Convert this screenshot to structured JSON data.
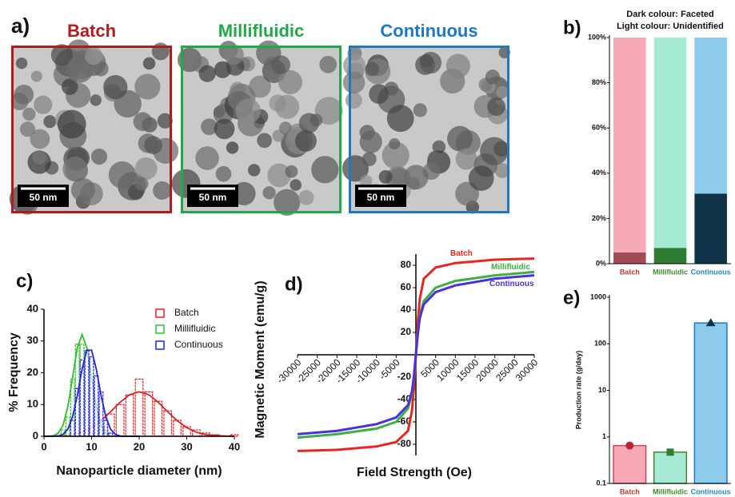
{
  "image_panel": {
    "label": "a)",
    "titles": [
      "Batch",
      "Millifluidic",
      "Continuous"
    ],
    "title_colors": [
      "#b01c1c",
      "#22a84a",
      "#1f78c1"
    ],
    "scale_bars": [
      "50 nm",
      "50 nm",
      "50 nm"
    ]
  },
  "chart_data": [
    {
      "type": "bar",
      "label": "b)",
      "title": [
        "Dark colour: Faceted",
        "Light colour: Unidentified"
      ],
      "stacked": true,
      "categories": [
        "Batch",
        "Millifluidic",
        "Continuous"
      ],
      "category_colors": [
        "#c0392b",
        "#3e8e2e",
        "#1a8bc4"
      ],
      "series": [
        {
          "colors": [
            "#a34a57",
            "#2e7d32",
            "#0f3347"
          ],
          "values": [
            5,
            7,
            31
          ]
        },
        {
          "colors": [
            "#f7a9b6",
            "#a6e9d5",
            "#8ccbec"
          ],
          "values": [
            95,
            93,
            69
          ]
        }
      ],
      "ylim": [
        0,
        100
      ],
      "yticks": [
        {
          "value": 0,
          "label": "0%"
        },
        {
          "value": 20,
          "label": "20%"
        },
        {
          "value": 40,
          "label": "40%"
        },
        {
          "value": 60,
          "label": "60%"
        },
        {
          "value": 80,
          "label": "80%"
        },
        {
          "value": 100,
          "label": "100%"
        }
      ]
    },
    {
      "type": "histogram",
      "label": "c)",
      "xlabel": "Nanoparticle diameter (nm)",
      "ylabel": "% Frequency",
      "xlim": [
        0,
        40
      ],
      "ylim": [
        0,
        40
      ],
      "xticks": [
        0,
        10,
        20,
        30,
        40
      ],
      "yticks": [
        0,
        10,
        20,
        30,
        40
      ],
      "legend": "upper right",
      "series": [
        {
          "name": "Batch",
          "color": "#e02020",
          "x": [
            10,
            12,
            14,
            16,
            18,
            20,
            22,
            24,
            26,
            28,
            30,
            32,
            34,
            36,
            40
          ],
          "values": [
            1,
            3,
            7,
            10,
            13,
            18,
            14,
            11,
            8,
            5,
            3,
            2,
            1,
            0.5,
            0.5
          ],
          "fit": {
            "x": [
              0,
              2,
              4,
              6,
              8,
              10,
              12,
              14,
              16,
              18,
              20,
              22,
              24,
              26,
              28,
              30,
              32,
              34,
              36,
              38,
              40
            ],
            "values": [
              0,
              0.1,
              0.2,
              0.5,
              1.3,
              2.7,
              4.9,
              7.7,
              10.7,
              13.1,
              14,
              13.1,
              10.7,
              7.7,
              4.9,
              2.7,
              1.3,
              0.5,
              0.2,
              0.1,
              0
            ]
          }
        },
        {
          "name": "Millifluidic",
          "color": "#2ebd2e",
          "x": [
            4,
            5,
            6,
            7,
            8,
            9,
            10,
            11,
            12
          ],
          "values": [
            2,
            6,
            18,
            29,
            29,
            22,
            15,
            6,
            2
          ],
          "fit": {
            "x": [
              0,
              1,
              2,
              3,
              4,
              5,
              6,
              7,
              8,
              9,
              10,
              11,
              12,
              13,
              14,
              15,
              16,
              17,
              18,
              19,
              20
            ],
            "values": [
              0,
              0,
              0.2,
              1,
              3.5,
              9.2,
              18.4,
              27.9,
              32,
              27.9,
              18.4,
              9.2,
              3.5,
              1,
              0.2,
              0,
              0,
              0,
              0,
              0,
              0
            ]
          }
        },
        {
          "name": "Continuous",
          "color": "#2424d8",
          "x": [
            6,
            7,
            8,
            9,
            10,
            11,
            12,
            13,
            14
          ],
          "values": [
            5,
            15,
            24,
            27,
            25,
            19,
            14,
            5,
            1
          ],
          "fit": {
            "x": [
              0,
              1,
              2,
              3,
              4,
              5,
              6,
              7,
              8,
              9,
              10,
              11,
              12,
              13,
              14,
              15,
              16,
              17,
              18,
              19,
              20
            ],
            "values": [
              0,
              0,
              0,
              0.1,
              0.6,
              2.2,
              6.1,
              12.8,
              21.1,
              27.1,
              27.1,
              21.1,
              12.8,
              6.1,
              2.2,
              0.6,
              0.1,
              0,
              0,
              0,
              0
            ]
          }
        }
      ]
    },
    {
      "type": "line",
      "label": "d)",
      "xlabel": "Field Strength (Oe)",
      "ylabel": "Magnetic Moment (emu/g)",
      "xlim": [
        -30000,
        30000
      ],
      "ylim": [
        -90,
        90
      ],
      "xticks": [
        -30000,
        -25000,
        -20000,
        -15000,
        -10000,
        -5000,
        5000,
        10000,
        15000,
        20000,
        25000,
        30000
      ],
      "yticks": [
        -80,
        -60,
        -40,
        -20,
        20,
        40,
        60,
        80
      ],
      "x": [
        -30000,
        -20000,
        -10000,
        -5000,
        -2000,
        -1000,
        -500,
        0,
        500,
        1000,
        2000,
        5000,
        10000,
        20000,
        30000
      ],
      "series": [
        {
          "name": "Batch",
          "color": "#e8261f",
          "values": [
            -86,
            -85,
            -82,
            -78,
            -68,
            -50,
            -30,
            0,
            30,
            50,
            68,
            78,
            82,
            85,
            86
          ]
        },
        {
          "name": "Millifluidic",
          "color": "#3cb043",
          "values": [
            -74,
            -71,
            -66,
            -60,
            -48,
            -35,
            -20,
            0,
            20,
            35,
            48,
            60,
            66,
            71,
            74
          ]
        },
        {
          "name": "Continuous",
          "color": "#4b2fe0",
          "values": [
            -71,
            -68,
            -62,
            -56,
            -45,
            -33,
            -19,
            0,
            19,
            33,
            45,
            56,
            62,
            68,
            71
          ]
        }
      ]
    },
    {
      "type": "bar",
      "label": "e)",
      "ylabel": "Production rate (g/day)",
      "log": true,
      "categories": [
        "Batch",
        "Millifluidic",
        "Continuous"
      ],
      "category_colors": [
        "#c0392b",
        "#3e8e2e",
        "#1a8bc4"
      ],
      "values": [
        0.65,
        0.47,
        280
      ],
      "colors": [
        "#f7a9b6",
        "#a6e9d5",
        "#8ccbec"
      ],
      "edge_colors": [
        "#d0455a",
        "#3e8e2e",
        "#1f78c1"
      ],
      "markers": [
        "circle",
        "square",
        "triangle"
      ],
      "marker_colors": [
        "#c0202a",
        "#2e7d32",
        "#0f3347"
      ],
      "ylim": [
        0.1,
        1000
      ],
      "yticks": [
        0.1,
        1,
        10,
        100,
        1000
      ]
    }
  ]
}
